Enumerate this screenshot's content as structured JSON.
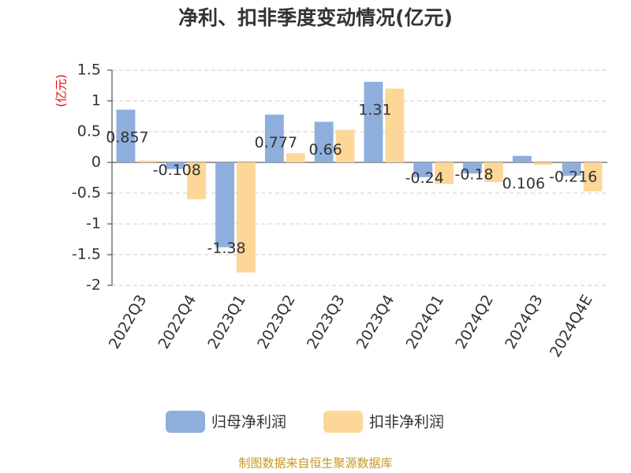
{
  "chart_data": {
    "type": "bar",
    "title": "净利、扣非季度变动情况(亿元)",
    "y_label": "(亿元)",
    "categories": [
      "2022Q3",
      "2022Q4",
      "2023Q1",
      "2023Q2",
      "2023Q3",
      "2023Q4",
      "2024Q1",
      "2024Q2",
      "2024Q3",
      "2024Q4E"
    ],
    "series": [
      {
        "name": "归母净利润",
        "color": "#8eaedc",
        "values": [
          0.857,
          -0.108,
          -1.38,
          0.777,
          0.66,
          1.31,
          -0.24,
          -0.18,
          0.106,
          -0.216
        ]
      },
      {
        "name": "扣非净利润",
        "color": "#fdd797",
        "values": [
          0.03,
          -0.6,
          -1.79,
          0.15,
          0.53,
          1.2,
          -0.35,
          -0.32,
          -0.04,
          -0.47
        ]
      }
    ],
    "ylim": [
      -2,
      1.5
    ],
    "yticks": [
      -2,
      -1.5,
      -1,
      -0.5,
      0,
      0.5,
      1,
      1.5
    ],
    "grid": true,
    "source": "制图数据来自恒生聚源数据库"
  }
}
